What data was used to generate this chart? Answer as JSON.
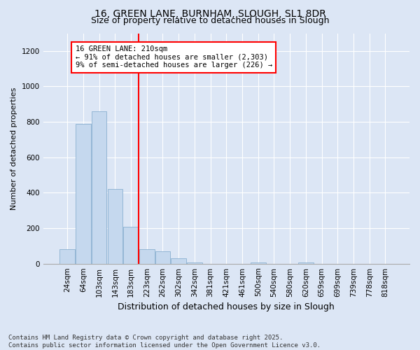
{
  "title": "16, GREEN LANE, BURNHAM, SLOUGH, SL1 8DR",
  "subtitle": "Size of property relative to detached houses in Slough",
  "xlabel": "Distribution of detached houses by size in Slough",
  "ylabel": "Number of detached properties",
  "footer1": "Contains HM Land Registry data © Crown copyright and database right 2025.",
  "footer2": "Contains public sector information licensed under the Open Government Licence v3.0.",
  "categories": [
    "24sqm",
    "64sqm",
    "103sqm",
    "143sqm",
    "183sqm",
    "223sqm",
    "262sqm",
    "302sqm",
    "342sqm",
    "381sqm",
    "421sqm",
    "461sqm",
    "500sqm",
    "540sqm",
    "580sqm",
    "620sqm",
    "659sqm",
    "699sqm",
    "739sqm",
    "778sqm",
    "818sqm"
  ],
  "values": [
    80,
    790,
    860,
    420,
    210,
    80,
    70,
    30,
    5,
    0,
    0,
    0,
    5,
    0,
    0,
    5,
    0,
    0,
    0,
    0,
    0
  ],
  "bar_color": "#c5d8ee",
  "bar_edge_color": "#8ab0d0",
  "bg_color": "#dce6f5",
  "vline_color": "red",
  "vline_x_index": 4,
  "annotation_line1": "16 GREEN LANE: 210sqm",
  "annotation_line2": "← 91% of detached houses are smaller (2,303)",
  "annotation_line3": "9% of semi-detached houses are larger (226) →",
  "ylim": [
    0,
    1300
  ],
  "yticks": [
    0,
    200,
    400,
    600,
    800,
    1000,
    1200
  ],
  "title_fontsize": 10,
  "subtitle_fontsize": 9,
  "ylabel_fontsize": 8,
  "xlabel_fontsize": 9,
  "tick_fontsize": 7.5,
  "footer_fontsize": 6.5,
  "annot_fontsize": 7.5
}
